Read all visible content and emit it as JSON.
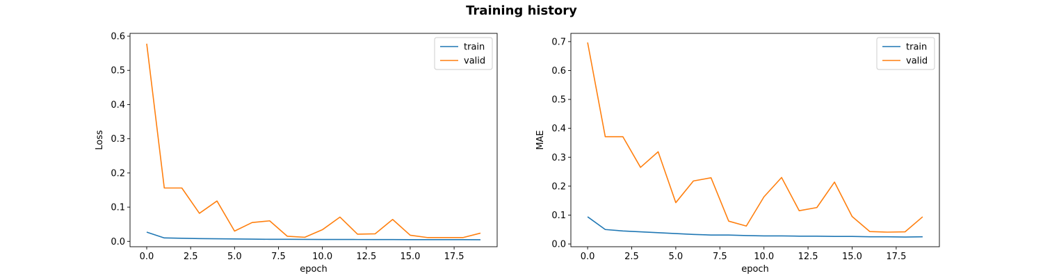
{
  "figure": {
    "title": "Training history"
  },
  "colors": {
    "train": "#1f77b4",
    "valid": "#ff7f0e",
    "axis": "#000000"
  },
  "chart_data": [
    {
      "type": "line",
      "xlabel": "epoch",
      "ylabel": "Loss",
      "xlim": [
        -0.95,
        19.95
      ],
      "ylim": [
        -0.0157,
        0.6082
      ],
      "xticks": [
        0.0,
        2.5,
        5.0,
        7.5,
        10.0,
        12.5,
        15.0,
        17.5
      ],
      "xtick_labels": [
        "0.0",
        "2.5",
        "5.0",
        "7.5",
        "10.0",
        "12.5",
        "15.0",
        "17.5"
      ],
      "yticks": [
        0.0,
        0.1,
        0.2,
        0.3,
        0.4,
        0.5,
        0.6
      ],
      "ytick_labels": [
        "0.0",
        "0.1",
        "0.2",
        "0.3",
        "0.4",
        "0.5",
        "0.6"
      ],
      "legend": "top-right",
      "grid": false,
      "x": [
        0,
        1,
        2,
        3,
        4,
        5,
        6,
        7,
        8,
        9,
        10,
        11,
        12,
        13,
        14,
        15,
        16,
        17,
        18,
        19
      ],
      "series": [
        {
          "name": "train",
          "color": "#1f77b4",
          "values": [
            0.027,
            0.01,
            0.009,
            0.008,
            0.0075,
            0.007,
            0.0065,
            0.006,
            0.006,
            0.0058,
            0.0056,
            0.0055,
            0.0054,
            0.0053,
            0.0052,
            0.0051,
            0.005,
            0.005,
            0.0049,
            0.0048
          ]
        },
        {
          "name": "valid",
          "color": "#ff7f0e",
          "values": [
            0.578,
            0.156,
            0.156,
            0.082,
            0.118,
            0.03,
            0.055,
            0.06,
            0.015,
            0.012,
            0.034,
            0.071,
            0.021,
            0.022,
            0.064,
            0.018,
            0.011,
            0.011,
            0.011,
            0.024
          ]
        }
      ]
    },
    {
      "type": "line",
      "xlabel": "epoch",
      "ylabel": "MAE",
      "xlim": [
        -0.95,
        19.95
      ],
      "ylim": [
        -0.0095,
        0.7285
      ],
      "xticks": [
        0.0,
        2.5,
        5.0,
        7.5,
        10.0,
        12.5,
        15.0,
        17.5
      ],
      "xtick_labels": [
        "0.0",
        "2.5",
        "5.0",
        "7.5",
        "10.0",
        "12.5",
        "15.0",
        "17.5"
      ],
      "yticks": [
        0.0,
        0.1,
        0.2,
        0.3,
        0.4,
        0.5,
        0.6,
        0.7
      ],
      "ytick_labels": [
        "0.0",
        "0.1",
        "0.2",
        "0.3",
        "0.4",
        "0.5",
        "0.6",
        "0.7"
      ],
      "legend": "top-right",
      "grid": false,
      "x": [
        0,
        1,
        2,
        3,
        4,
        5,
        6,
        7,
        8,
        9,
        10,
        11,
        12,
        13,
        14,
        15,
        16,
        17,
        18,
        19
      ],
      "series": [
        {
          "name": "train",
          "color": "#1f77b4",
          "values": [
            0.094,
            0.05,
            0.045,
            0.042,
            0.039,
            0.036,
            0.033,
            0.031,
            0.031,
            0.029,
            0.028,
            0.028,
            0.027,
            0.027,
            0.026,
            0.026,
            0.025,
            0.025,
            0.024,
            0.025
          ]
        },
        {
          "name": "valid",
          "color": "#ff7f0e",
          "values": [
            0.697,
            0.371,
            0.371,
            0.265,
            0.319,
            0.143,
            0.218,
            0.229,
            0.079,
            0.062,
            0.163,
            0.23,
            0.115,
            0.126,
            0.214,
            0.095,
            0.043,
            0.041,
            0.042,
            0.094
          ]
        }
      ]
    }
  ]
}
